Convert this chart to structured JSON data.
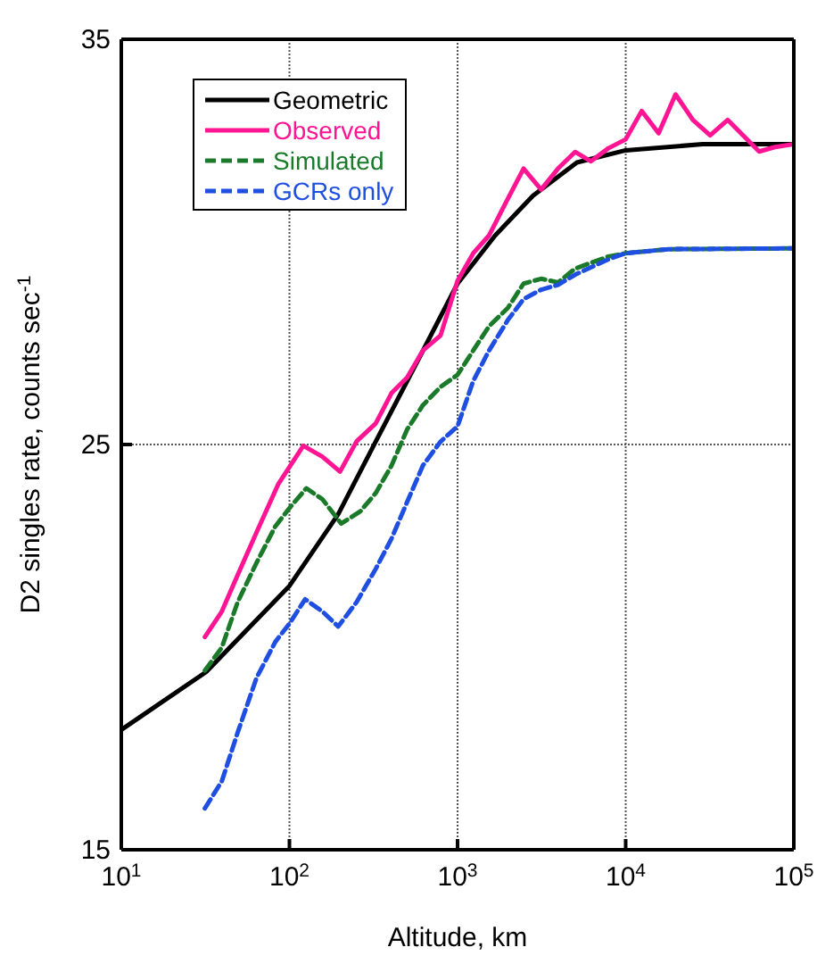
{
  "chart_data": {
    "type": "line",
    "xlabel": "Altitude, km",
    "ylabel": "D2 singles rate, counts sec$^{-1}$",
    "log": "x",
    "grid": true,
    "legend": "top left",
    "marker": "none",
    "xlim": [
      10,
      100000
    ],
    "xticks": [
      {
        "value": 10,
        "label": "10$^{1}$"
      },
      {
        "value": 100,
        "label": "10$^{2}$"
      },
      {
        "value": 1000,
        "label": "10$^{3}$"
      },
      {
        "value": 10000,
        "label": "10$^{4}$"
      },
      {
        "value": 100000,
        "label": "10$^{5}$"
      }
    ],
    "ylim": [
      15,
      35
    ],
    "yticks": [
      15,
      25,
      35
    ],
    "series": [
      {
        "name": "Geometric",
        "color": "#000000",
        "line_style": "solid",
        "x": [
          10,
          32,
          100,
          195,
          313,
          597,
          1000,
          1675,
          2810,
          5130,
          10000,
          28700,
          100000
        ],
        "values": [
          17.96,
          19.39,
          21.51,
          23.28,
          24.93,
          27.17,
          28.97,
          30.16,
          31.14,
          31.96,
          32.26,
          32.41,
          32.41
        ]
      },
      {
        "name": "Observed",
        "color": "#ff1493",
        "line_style": "solid",
        "x": [
          31.4,
          39.6,
          49.2,
          63.7,
          86,
          121,
          157,
          200,
          251,
          326,
          405,
          501,
          622,
          792,
          1000,
          1240,
          1540,
          1905,
          2470,
          3140,
          3960,
          5000,
          6200,
          7890,
          10000,
          12450,
          15700,
          19800,
          25100,
          31800,
          40400,
          62200,
          77200,
          100000
        ],
        "values": [
          20.25,
          20.88,
          21.78,
          22.83,
          24.03,
          24.97,
          24.7,
          24.33,
          25.08,
          25.52,
          26.27,
          26.65,
          27.32,
          27.69,
          29.04,
          29.72,
          30.16,
          30.91,
          31.81,
          31.29,
          31.81,
          32.22,
          31.99,
          32.31,
          32.53,
          33.23,
          32.68,
          33.64,
          33.01,
          32.63,
          33.01,
          32.23,
          32.34,
          32.41
        ]
      },
      {
        "name": "Simulated",
        "color": "#1a7a2a",
        "line_style": "dashed",
        "x": [
          31.4,
          39.6,
          49.2,
          63.7,
          82.4,
          100,
          126,
          157,
          203,
          264,
          326,
          405,
          501,
          622,
          792,
          1000,
          1240,
          1540,
          1990,
          2470,
          3140,
          3960,
          5000,
          7890,
          10000,
          18000,
          100000
        ],
        "values": [
          19.42,
          19.99,
          21.11,
          22.08,
          22.98,
          23.43,
          23.92,
          23.65,
          23.05,
          23.35,
          23.8,
          24.48,
          25.37,
          25.97,
          26.42,
          26.72,
          27.32,
          27.92,
          28.37,
          28.97,
          29.09,
          29.0,
          29.34,
          29.64,
          29.72,
          29.82,
          29.84
        ]
      },
      {
        "name": "GCRs only",
        "color": "#1f4fe0",
        "line_style": "dashed",
        "x": [
          31.4,
          39.6,
          49.2,
          63.7,
          82.4,
          100,
          124,
          157,
          195,
          251,
          326,
          405,
          501,
          622,
          792,
          1000,
          1240,
          1540,
          1990,
          2470,
          3140,
          3960,
          5000,
          7890,
          10000,
          18000,
          100000
        ],
        "values": [
          16.02,
          16.69,
          17.89,
          19.24,
          20.13,
          20.58,
          21.18,
          20.88,
          20.51,
          21.11,
          21.93,
          22.68,
          23.58,
          24.48,
          25.07,
          25.45,
          26.57,
          27.32,
          28.07,
          28.59,
          28.82,
          28.94,
          29.19,
          29.57,
          29.72,
          29.82,
          29.84
        ]
      }
    ]
  }
}
